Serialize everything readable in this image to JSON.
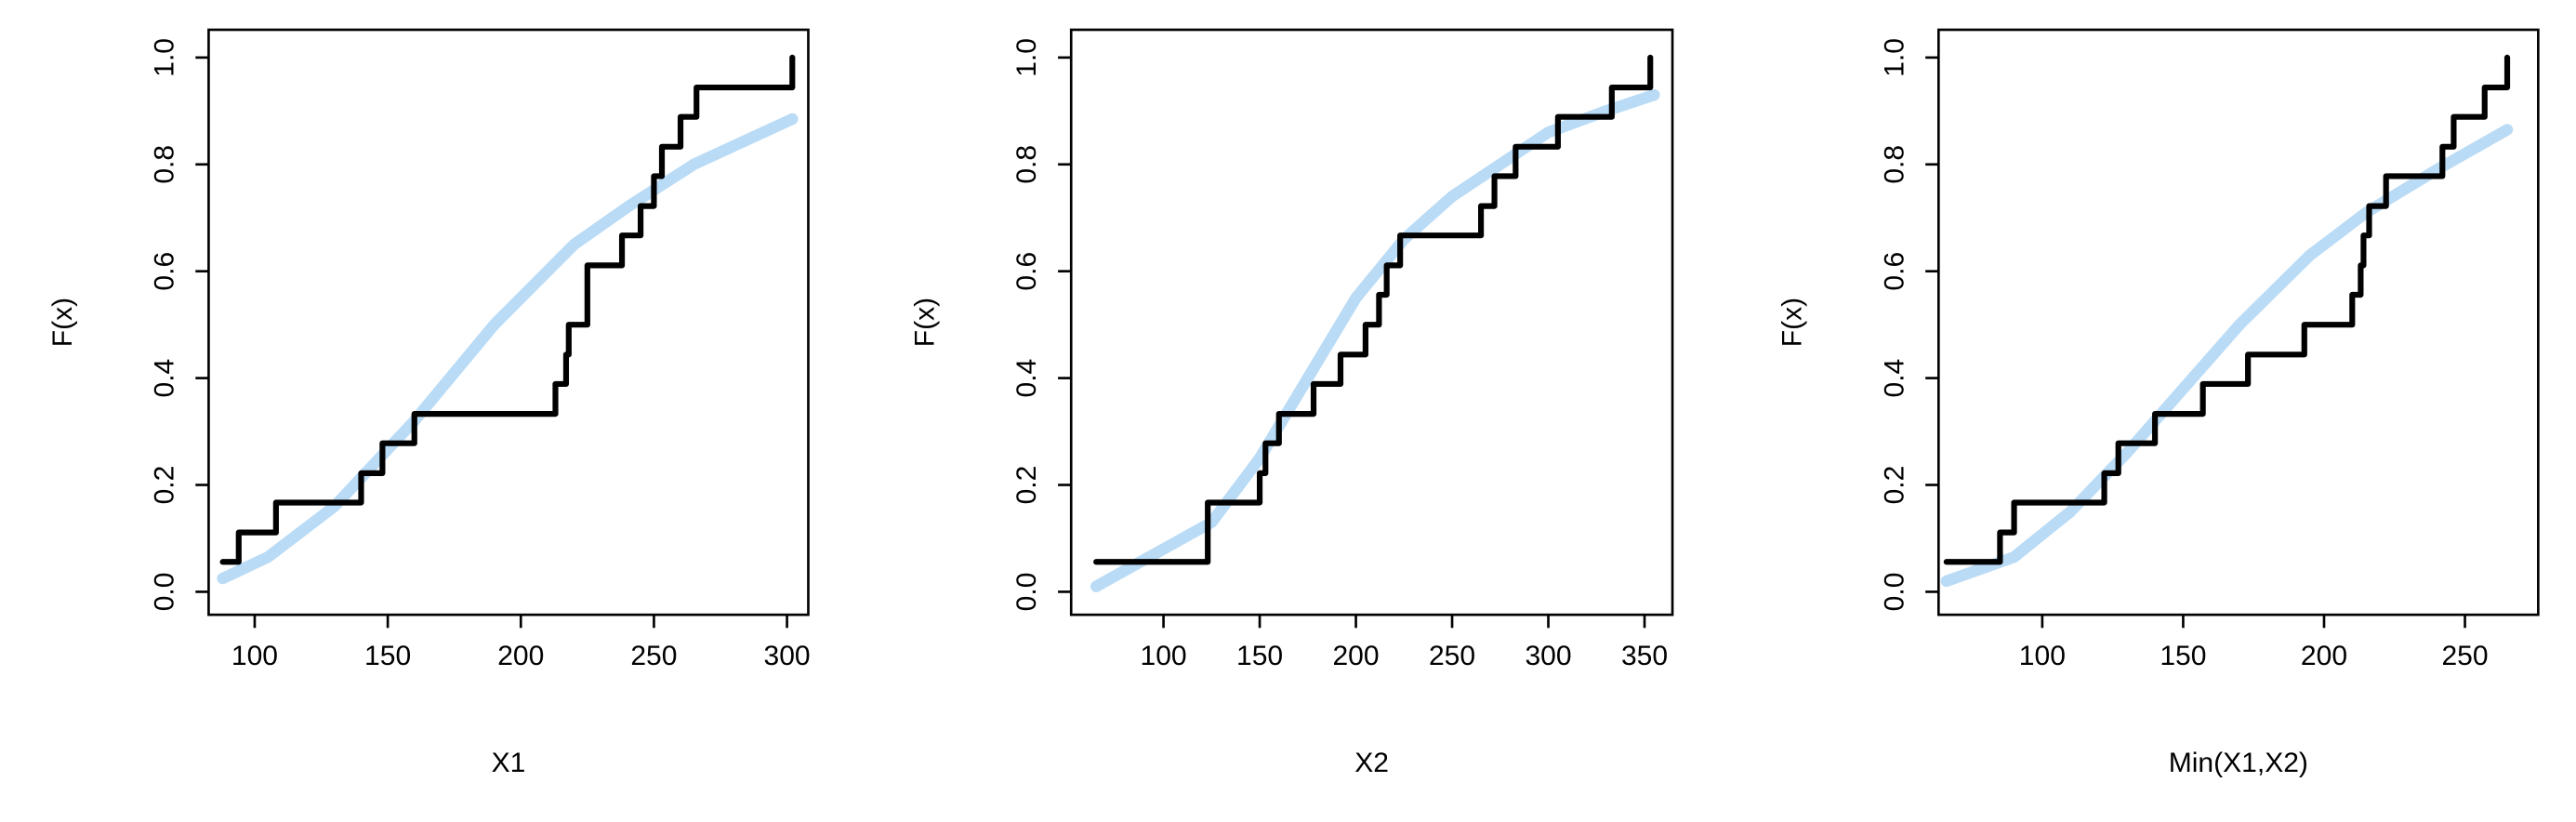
{
  "chart_data": [
    {
      "type": "line",
      "x_label": "X1",
      "y_label": "F(x)",
      "xlim": [
        82.7,
        308
      ],
      "ylim": [
        -0.043,
        1.052
      ],
      "xticks": [
        100,
        150,
        200,
        250,
        300
      ],
      "yticks": [
        {
          "value": 0,
          "label": "0.0"
        },
        {
          "value": 0.2,
          "label": "0.2"
        },
        {
          "value": 0.4,
          "label": "0.4"
        },
        {
          "value": 0.6,
          "label": "0.6"
        },
        {
          "value": 0.8,
          "label": "0.8"
        },
        {
          "value": 1,
          "label": "1.0"
        }
      ],
      "series": [
        {
          "color": "#000000",
          "drawstyle": "steps-post",
          "x": [
            88,
            94,
            108,
            140,
            148,
            160,
            213,
            217,
            218,
            225,
            238,
            245,
            250,
            253,
            260,
            266,
            302
          ],
          "values": [
            0.056,
            0.111,
            0.167,
            0.222,
            0.278,
            0.333,
            0.389,
            0.444,
            0.5,
            0.611,
            0.667,
            0.722,
            0.778,
            0.833,
            0.889,
            0.944,
            1.0
          ]
        },
        {
          "color": "#b9dbf6",
          "drawstyle": "smooth",
          "x": [
            88,
            105,
            130,
            160,
            190,
            220,
            240,
            265,
            302
          ],
          "values": [
            0.025,
            0.065,
            0.16,
            0.32,
            0.5,
            0.65,
            0.72,
            0.8,
            0.885
          ]
        }
      ]
    },
    {
      "type": "line",
      "x_label": "X2",
      "y_label": "F(x)",
      "xlim": [
        52,
        364.5
      ],
      "ylim": [
        -0.043,
        1.052
      ],
      "xticks": [
        100,
        150,
        200,
        250,
        300,
        350
      ],
      "yticks": [
        {
          "value": 0,
          "label": "0.0"
        },
        {
          "value": 0.2,
          "label": "0.2"
        },
        {
          "value": 0.4,
          "label": "0.4"
        },
        {
          "value": 0.6,
          "label": "0.6"
        },
        {
          "value": 0.8,
          "label": "0.8"
        },
        {
          "value": 1,
          "label": "1.0"
        }
      ],
      "series": [
        {
          "color": "#000000",
          "drawstyle": "steps-post",
          "x": [
            65,
            123,
            150,
            153,
            160,
            178,
            192,
            205,
            212,
            216,
            223,
            265,
            272,
            283,
            305,
            333,
            353
          ],
          "values": [
            0.056,
            0.167,
            0.222,
            0.278,
            0.333,
            0.389,
            0.444,
            0.5,
            0.556,
            0.611,
            0.667,
            0.722,
            0.778,
            0.833,
            0.889,
            0.944,
            1.0
          ]
        },
        {
          "color": "#b9dbf6",
          "drawstyle": "smooth",
          "x": [
            65,
            90,
            125,
            150,
            175,
            200,
            225,
            250,
            275,
            300,
            330,
            355
          ],
          "values": [
            0.01,
            0.06,
            0.13,
            0.25,
            0.4,
            0.55,
            0.66,
            0.74,
            0.8,
            0.86,
            0.9,
            0.93
          ]
        }
      ]
    },
    {
      "type": "line",
      "x_label": "Min(X1,X2)",
      "y_label": "F(x)",
      "xlim": [
        63.2,
        276
      ],
      "ylim": [
        -0.043,
        1.052
      ],
      "xticks": [
        100,
        150,
        200,
        250
      ],
      "yticks": [
        {
          "value": 0,
          "label": "0.0"
        },
        {
          "value": 0.2,
          "label": "0.2"
        },
        {
          "value": 0.4,
          "label": "0.4"
        },
        {
          "value": 0.6,
          "label": "0.6"
        },
        {
          "value": 0.8,
          "label": "0.8"
        },
        {
          "value": 1,
          "label": "1.0"
        }
      ],
      "series": [
        {
          "color": "#000000",
          "drawstyle": "steps-post",
          "x": [
            66,
            85,
            90,
            122,
            127,
            140,
            157,
            173,
            193,
            210,
            213,
            214,
            216,
            222,
            242,
            246,
            257,
            265
          ],
          "values": [
            0.056,
            0.111,
            0.167,
            0.222,
            0.278,
            0.333,
            0.389,
            0.444,
            0.5,
            0.556,
            0.611,
            0.667,
            0.722,
            0.778,
            0.833,
            0.889,
            0.944,
            1.0
          ]
        },
        {
          "color": "#b9dbf6",
          "drawstyle": "smooth",
          "x": [
            66,
            90,
            110,
            130,
            150,
            170,
            195,
            215,
            240,
            265
          ],
          "values": [
            0.02,
            0.065,
            0.15,
            0.26,
            0.38,
            0.5,
            0.63,
            0.71,
            0.79,
            0.865
          ]
        }
      ]
    }
  ]
}
